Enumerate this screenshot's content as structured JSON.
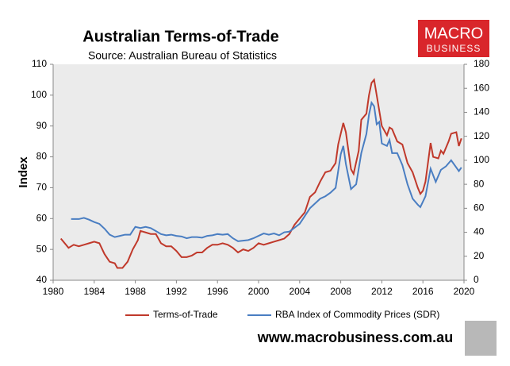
{
  "chart_data": {
    "type": "line",
    "title": "Australian Terms-of-Trade",
    "subtitle": "Source: Australian Bureau of Statistics",
    "logo": [
      "MACRO",
      "BUSINESS"
    ],
    "website": "www.macrobusiness.com.au",
    "ylabel": "Index",
    "xlim": [
      1980,
      2020
    ],
    "xticks": [
      1980,
      1984,
      1988,
      1992,
      1996,
      2000,
      2004,
      2008,
      2012,
      2016,
      2020
    ],
    "ylim": [
      40,
      110
    ],
    "yticks": [
      40,
      50,
      60,
      70,
      80,
      90,
      100,
      110
    ],
    "y2lim": [
      0,
      180
    ],
    "y2ticks": [
      0,
      20,
      40,
      60,
      80,
      100,
      120,
      140,
      160,
      180
    ],
    "grid": false,
    "legend": "bottom",
    "series": [
      {
        "name": "Terms-of-Trade",
        "color": "#c0392b",
        "x": [
          1980.75,
          1981.5,
          1982,
          1982.5,
          1983,
          1983.5,
          1984,
          1984.5,
          1985,
          1985.5,
          1986,
          1986.25,
          1986.75,
          1987.25,
          1987.75,
          1988.25,
          1988.5,
          1989,
          1989.5,
          1990,
          1990.5,
          1991,
          1991.5,
          1992,
          1992.5,
          1993,
          1993.5,
          1994,
          1994.5,
          1995,
          1995.5,
          1996,
          1996.5,
          1997,
          1997.5,
          1998,
          1998.5,
          1999,
          1999.5,
          2000,
          2000.5,
          2001,
          2001.5,
          2002,
          2002.5,
          2003,
          2003.5,
          2004,
          2004.5,
          2005,
          2005.5,
          2006,
          2006.5,
          2007,
          2007.5,
          2007.75,
          2008.25,
          2008.5,
          2009,
          2009.25,
          2009.75,
          2010,
          2010.5,
          2010.75,
          2011,
          2011.25,
          2011.5,
          2011.75,
          2012,
          2012.5,
          2012.75,
          2013,
          2013.5,
          2014,
          2014.5,
          2015,
          2015.5,
          2015.75,
          2016,
          2016.25,
          2016.75,
          2017,
          2017.5,
          2017.75,
          2018,
          2018.5,
          2018.75,
          2019.25,
          2019.5,
          2019.75
        ],
        "values": [
          53.5,
          50.5,
          51.5,
          51,
          51.5,
          52,
          52.5,
          52,
          48.5,
          46,
          45.5,
          44,
          44,
          46,
          50,
          53,
          56,
          55.5,
          55,
          55,
          52,
          51,
          51,
          49.5,
          47.5,
          47.5,
          48,
          49,
          49,
          50.5,
          51.5,
          51.5,
          52,
          51.5,
          50.5,
          49,
          50,
          49.5,
          50.5,
          52,
          51.5,
          52,
          52.5,
          53,
          53.5,
          55,
          58,
          60,
          62,
          67,
          68.5,
          72,
          75,
          75.5,
          78,
          84,
          91,
          88,
          76,
          74.5,
          82,
          92,
          94,
          100,
          104,
          105,
          100,
          95,
          90,
          87,
          89.5,
          89,
          85,
          84,
          78,
          75,
          70,
          68,
          69,
          72,
          84.5,
          80,
          79.5,
          82,
          81,
          85,
          87.5,
          88,
          83.5,
          86
        ]
      },
      {
        "name": "RBA Index of Commodity Prices (SDR)",
        "color": "#4a7ec2",
        "axis": "y2",
        "x": [
          1981.75,
          1982.5,
          1983,
          1983.5,
          1984,
          1984.5,
          1985,
          1985.5,
          1986,
          1986.5,
          1987,
          1987.5,
          1988,
          1988.5,
          1989,
          1989.5,
          1990,
          1990.5,
          1991,
          1991.5,
          1992,
          1992.5,
          1993,
          1993.5,
          1994,
          1994.5,
          1995,
          1995.5,
          1996,
          1996.5,
          1997,
          1997.5,
          1998,
          1998.5,
          1999,
          1999.5,
          2000,
          2000.5,
          2001,
          2001.5,
          2002,
          2002.5,
          2003,
          2004,
          2005,
          2005.5,
          2006,
          2006.5,
          2007,
          2007.5,
          2008,
          2008.25,
          2008.5,
          2009,
          2009.5,
          2010,
          2010.5,
          2010.75,
          2011,
          2011.25,
          2011.5,
          2011.75,
          2012,
          2012.5,
          2012.75,
          2013,
          2013.5,
          2014,
          2014.5,
          2015,
          2015.5,
          2015.75,
          2016.25,
          2016.75,
          2017.25,
          2017.75,
          2018.25,
          2018.75,
          2019.25,
          2019.5,
          2019.75
        ],
        "values": [
          51,
          51,
          52,
          50.5,
          48.5,
          47,
          43,
          38,
          36,
          37,
          38,
          38,
          44.5,
          43.5,
          44.5,
          43.5,
          41,
          38.5,
          37.5,
          38,
          37,
          36.5,
          35,
          36,
          36,
          35.5,
          37,
          37.5,
          38.5,
          38,
          38.5,
          35,
          32.5,
          33,
          33.5,
          35,
          37,
          39,
          38,
          39,
          37.5,
          40,
          40.5,
          47,
          60,
          64,
          68,
          70,
          73,
          77,
          105,
          112,
          97,
          76,
          80,
          106,
          122,
          138,
          148,
          145,
          130,
          132,
          114,
          112,
          117,
          106,
          106,
          96,
          80,
          68,
          63,
          61,
          70,
          93,
          82,
          92,
          95,
          100,
          94,
          91,
          94
        ]
      }
    ]
  }
}
